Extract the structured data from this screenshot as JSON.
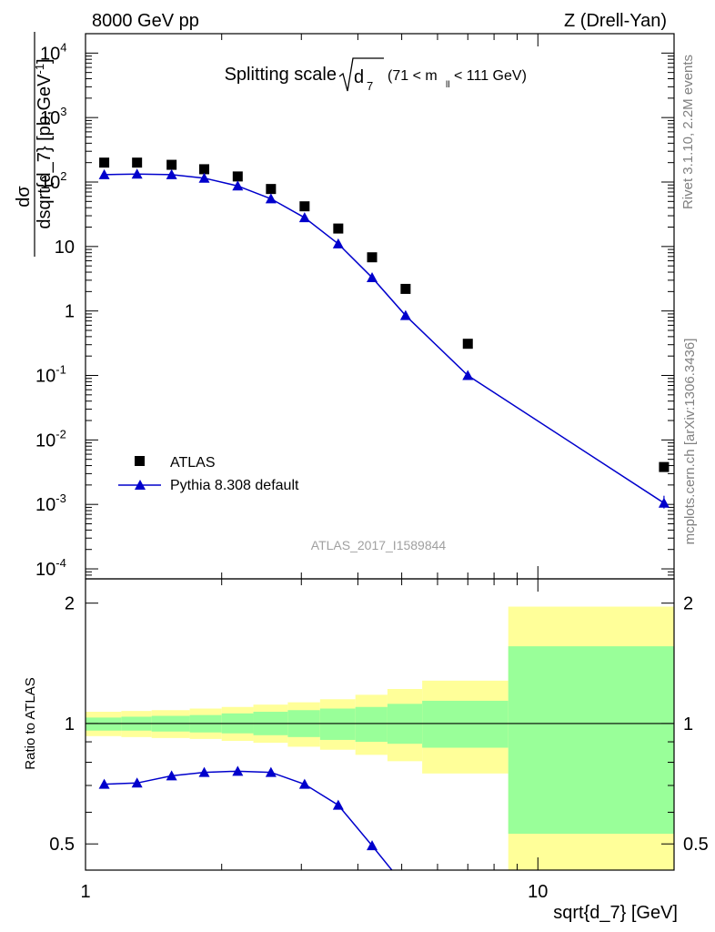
{
  "header": {
    "left": "8000 GeV pp",
    "right": "Z (Drell-Yan)"
  },
  "side": {
    "rivet": "Rivet 3.1.10,  2.2M events",
    "mcplots": "mcplots.cern.ch [arXiv:1306.3436]"
  },
  "chart_data": [
    {
      "type": "scatter",
      "title_main": "Splitting scale",
      "title_root": "d",
      "title_root_sub": "7",
      "title_range_pre": "(71 < m",
      "title_range_sub": "ll",
      "title_range_post": " < 111 GeV)",
      "ylabel": "dσ/dsqrt{d_7} [pb,GeV⁻¹]",
      "ylabel_num": "dσ",
      "ylabel_den": "dsqrt{d_7} [pb,GeV",
      "ylabel_sup": "-1",
      "ylabel_close": "]",
      "yscale": "log",
      "xscale": "log",
      "ylim": [
        7e-05,
        20000
      ],
      "xlim": [
        1.0,
        20.0
      ],
      "yticks": [
        {
          "v": 10000,
          "base": "10",
          "exp": "4"
        },
        {
          "v": 1000,
          "base": "10",
          "exp": "3"
        },
        {
          "v": 100,
          "base": "10",
          "exp": "2"
        },
        {
          "v": 10,
          "base": "10",
          "exp": ""
        },
        {
          "v": 1,
          "base": "1",
          "exp": ""
        },
        {
          "v": 0.1,
          "base": "10",
          "exp": "-1"
        },
        {
          "v": 0.01,
          "base": "10",
          "exp": "-2"
        },
        {
          "v": 0.001,
          "base": "10",
          "exp": "-3"
        },
        {
          "v": 0.0001,
          "base": "10",
          "exp": "-4"
        }
      ],
      "legend_position": "bottom-left",
      "watermark": "ATLAS_2017_I1589844",
      "series": [
        {
          "name": "ATLAS",
          "marker": "square",
          "color": "#000000",
          "x": [
            1.1,
            1.3,
            1.55,
            1.83,
            2.17,
            2.57,
            3.05,
            3.62,
            4.3,
            5.1,
            7.0,
            19.0
          ],
          "y": [
            200,
            200,
            185,
            158,
            122,
            78,
            42,
            19,
            6.8,
            2.2,
            0.31,
            0.0038
          ]
        },
        {
          "name": "Pythia 8.308 default",
          "marker": "triangle",
          "color": "#0000cc",
          "x": [
            1.1,
            1.3,
            1.55,
            1.83,
            2.17,
            2.57,
            3.05,
            3.62,
            4.3,
            5.1,
            7.0,
            19.0
          ],
          "y": [
            130,
            133,
            130,
            115,
            87,
            55,
            28,
            11,
            3.3,
            0.85,
            0.1,
            0.00105
          ]
        }
      ]
    },
    {
      "type": "line",
      "ylabel": "Ratio to ATLAS",
      "xlabel": "sqrt{d_7} [GeV]",
      "xscale": "log",
      "yscale": "log",
      "xlim": [
        1.0,
        20.0
      ],
      "ylim": [
        0.43,
        2.3
      ],
      "yticks": [
        {
          "v": 2,
          "label": "2"
        },
        {
          "v": 1,
          "label": "1"
        },
        {
          "v": 0.5,
          "label": "0.5"
        }
      ],
      "xticks": [
        {
          "v": 1,
          "label": "1"
        },
        {
          "v": 10,
          "label": "10"
        }
      ],
      "bands": {
        "edges": [
          1.0,
          1.2,
          1.4,
          1.7,
          2.0,
          2.35,
          2.8,
          3.3,
          3.95,
          4.65,
          5.55,
          8.6,
          20.0
        ],
        "green_lo": [
          0.96,
          0.96,
          0.955,
          0.95,
          0.945,
          0.935,
          0.925,
          0.91,
          0.9,
          0.89,
          0.87,
          0.53
        ],
        "green_hi": [
          1.035,
          1.04,
          1.045,
          1.05,
          1.06,
          1.07,
          1.08,
          1.09,
          1.1,
          1.12,
          1.14,
          1.56
        ],
        "yellow_lo": [
          0.93,
          0.925,
          0.92,
          0.915,
          0.905,
          0.895,
          0.875,
          0.86,
          0.835,
          0.805,
          0.75,
          0.42
        ],
        "yellow_hi": [
          1.07,
          1.075,
          1.08,
          1.09,
          1.1,
          1.115,
          1.13,
          1.15,
          1.18,
          1.22,
          1.28,
          1.96
        ]
      },
      "series": [
        {
          "name": "Pythia 8.308 default",
          "color": "#0000cc",
          "x": [
            1.1,
            1.3,
            1.55,
            1.83,
            2.17,
            2.57,
            3.05,
            3.62,
            4.3,
            5.1
          ],
          "y": [
            0.705,
            0.71,
            0.74,
            0.755,
            0.76,
            0.755,
            0.705,
            0.625,
            0.495,
            0.39
          ]
        }
      ]
    }
  ]
}
